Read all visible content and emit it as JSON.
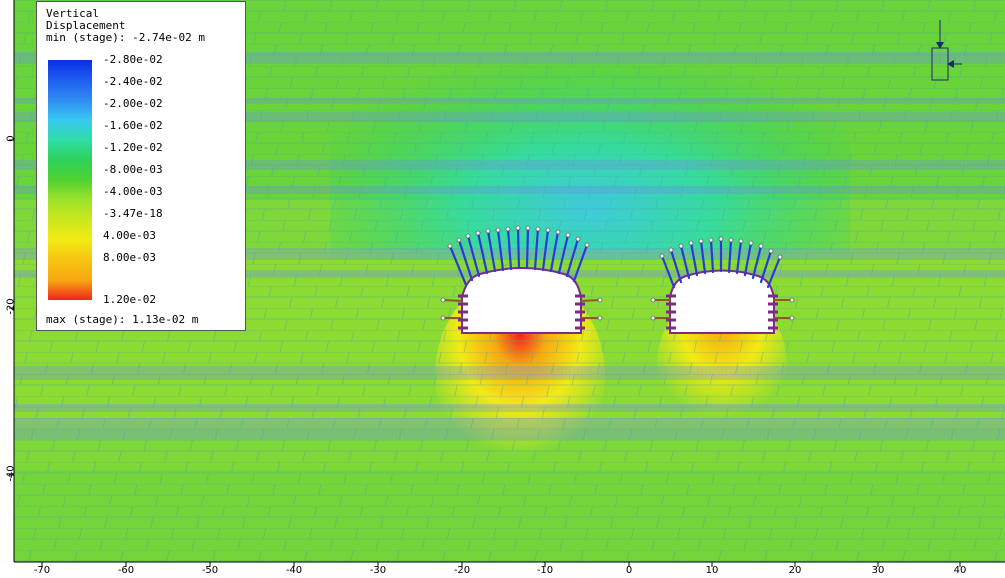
{
  "legend": {
    "title_line1": "Vertical",
    "title_line2": "Displacement",
    "min_text": "min (stage): -2.74e-02 m",
    "max_text": "max (stage): 1.13e-02 m",
    "entries": [
      {
        "label": "-2.80e-02",
        "color": "#0a2ee6"
      },
      {
        "label": "-2.40e-02",
        "color": "#1f5ef0"
      },
      {
        "label": "-2.00e-02",
        "color": "#2f8cf2"
      },
      {
        "label": "-1.60e-02",
        "color": "#37c9ef"
      },
      {
        "label": "-1.20e-02",
        "color": "#2fdca8"
      },
      {
        "label": "-8.00e-03",
        "color": "#2ed25a"
      },
      {
        "label": "-4.00e-03",
        "color": "#4fd230"
      },
      {
        "label": "-3.47e-18",
        "color": "#9de22a"
      },
      {
        "label": "4.00e-03",
        "color": "#f2ea14"
      },
      {
        "label": "8.00e-03",
        "color": "#f7a812"
      },
      {
        "label": "1.20e-02",
        "color": "#f0261a"
      }
    ]
  },
  "axes": {
    "x_ticks": [
      "-70",
      "-60",
      "-50",
      "-40",
      "-30",
      "-20",
      "-10",
      "0",
      "10",
      "20",
      "30",
      "40"
    ],
    "y_ticks": [
      "0",
      "-20",
      "-40"
    ]
  }
}
